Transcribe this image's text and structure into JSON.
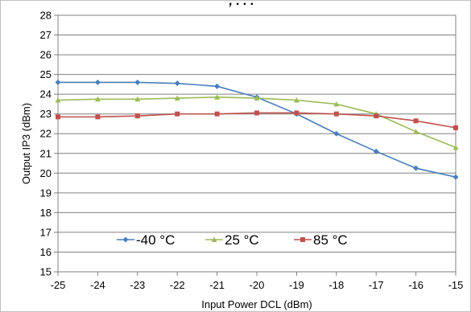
{
  "chart_data": {
    "type": "line",
    "title_fragment": ", . . .",
    "xlabel": "Input Power DCL (dBm)",
    "ylabel": "Output IP3 (dBm)",
    "x": [
      -25,
      -24,
      -23,
      -22,
      -21,
      -20,
      -19,
      -18,
      -17,
      -16,
      -15
    ],
    "xlim": [
      -25,
      -15
    ],
    "ylim": [
      15,
      28
    ],
    "x_ticks": [
      "-25",
      "-24",
      "-23",
      "-22",
      "-21",
      "-20",
      "-19",
      "-18",
      "-17",
      "-16",
      "-15"
    ],
    "y_ticks": [
      "15",
      "16",
      "17",
      "18",
      "19",
      "20",
      "21",
      "22",
      "23",
      "24",
      "25",
      "26",
      "27",
      "28"
    ],
    "grid": "horizontal",
    "legend_position": "bottom-inside",
    "series": [
      {
        "name": "-40 °C",
        "color": "#4a7ebb",
        "marker": "diamond",
        "values": [
          24.6,
          24.6,
          24.6,
          24.55,
          24.4,
          23.85,
          23.0,
          22.0,
          21.1,
          20.25,
          19.8
        ]
      },
      {
        "name": "25 °C",
        "color": "#9bbb59",
        "marker": "triangle",
        "values": [
          23.7,
          23.75,
          23.75,
          23.8,
          23.85,
          23.8,
          23.7,
          23.5,
          23.0,
          22.1,
          21.3
        ]
      },
      {
        "name": "85 °C",
        "color": "#c0504d",
        "marker": "square",
        "values": [
          22.85,
          22.85,
          22.9,
          23.0,
          23.0,
          23.05,
          23.05,
          23.0,
          22.9,
          22.65,
          22.3
        ]
      }
    ]
  }
}
